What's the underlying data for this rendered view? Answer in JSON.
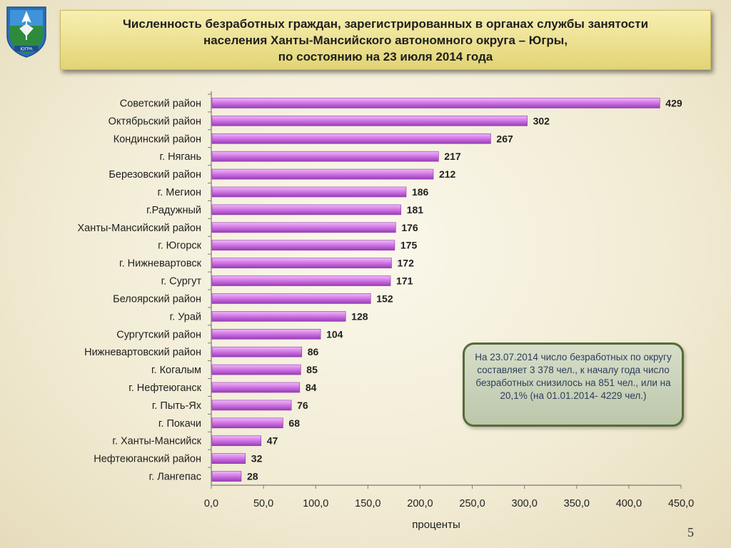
{
  "title": {
    "lines": [
      "Численность безработных граждан, зарегистрированных в органах службы занятости",
      "населения Ханты-Мансийского автономного округа – Югры,",
      "по состоянию на 23 июля 2014  года"
    ]
  },
  "emblem": {
    "icon": "coat-of-arms-icon",
    "label": "ЮГРА"
  },
  "note": {
    "text": "На 23.07.2014 число безработных по округу составляет 3 378 чел., к началу года число безработных снизилось на 851 чел., или на 20,1% (на 01.01.2014- 4229 чел.)"
  },
  "page_number": "5",
  "colors": {
    "bar_top": "#e9a6f4",
    "bar_bottom": "#a23fc0",
    "title_bg": "#ece09a",
    "note_border": "#556b38"
  },
  "chart_data": {
    "type": "bar",
    "orientation": "horizontal",
    "categories": [
      "Советский район",
      "Октябрьский район",
      "Кондинский район",
      "г. Нягань",
      "Березовский район",
      "г. Мегион",
      "г.Радужный",
      "Ханты-Мансийский район",
      "г. Югорск",
      "г. Нижневартовск",
      "г. Сургут",
      "Белоярский  район",
      "г. Урай",
      "Сургутский район",
      "Нижневартовский район",
      "г. Когалым",
      "г. Нефтеюганск",
      "г. Пыть-Ях",
      "г. Покачи",
      "г. Ханты-Мансийск",
      "Нефтеюганский район",
      "г. Лангепас"
    ],
    "values": [
      429,
      302,
      267,
      217,
      212,
      186,
      181,
      176,
      175,
      172,
      171,
      152,
      128,
      104,
      86,
      85,
      84,
      76,
      68,
      47,
      32,
      28
    ],
    "value_labels": [
      "429",
      "302",
      "267",
      "217",
      "212",
      "186",
      "181",
      "176",
      "175",
      "172",
      "171",
      "152",
      "128",
      "104",
      "86",
      "85",
      "84",
      "76",
      "68",
      "47",
      "32",
      "28"
    ],
    "xlim": [
      0,
      450
    ],
    "xticks": [
      "0,0",
      "50,0",
      "100,0",
      "150,0",
      "200,0",
      "250,0",
      "300,0",
      "350,0",
      "400,0",
      "450,0"
    ],
    "xlabel": "проценты",
    "ylabel": "",
    "grid": false,
    "legend": "none"
  }
}
